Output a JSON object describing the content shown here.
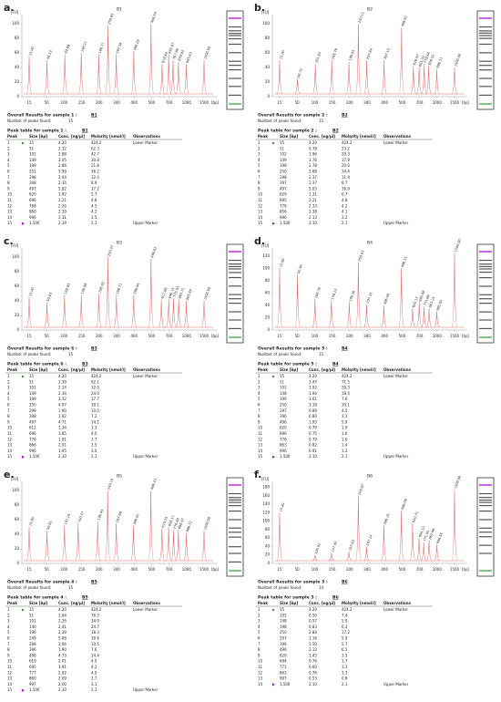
{
  "chart_data": [
    {
      "type": "electropherogram",
      "title": "B1",
      "y_unit": "[FU]",
      "x_unit": "[bp]",
      "color": "#e06a6a",
      "lower_marker_color": "#2ca02c",
      "upper_marker_color": "#b000d0",
      "x": [
        15,
        51,
        102,
        149,
        199,
        251,
        298,
        398,
        497,
        620,
        696,
        768,
        860,
        996,
        1500
      ],
      "values": [
        55,
        50,
        58,
        60,
        58,
        98,
        58,
        62,
        100,
        45,
        58,
        50,
        48,
        45,
        50
      ],
      "peak_labels": [
        "15.00",
        "49.23",
        "99.86",
        "148.21",
        "198.71",
        "250.85",
        "297.58",
        "398.29",
        "496.54",
        "619.84",
        "695.87",
        "767.86",
        "859.82",
        "995.63",
        "1500.00"
      ],
      "xlim": [
        15,
        1500
      ],
      "xticks": [
        15,
        50,
        100,
        150,
        200,
        300,
        400,
        500,
        700,
        1000,
        1500
      ],
      "ylim": [
        0,
        110
      ],
      "yticks": [
        0,
        20,
        40,
        60,
        80,
        100
      ]
    },
    {
      "type": "electropherogram",
      "title": "B2",
      "y_unit": "[FU]",
      "x_unit": "[bp]",
      "color": "#e06a6a",
      "lower_marker_color": "#2ca02c",
      "upper_marker_color": "#b000d0",
      "x": [
        15,
        51,
        102,
        149,
        198,
        250,
        298,
        397,
        497,
        629,
        695,
        779,
        856,
        996,
        1500
      ],
      "values": [
        50,
        25,
        45,
        50,
        48,
        100,
        50,
        50,
        95,
        42,
        40,
        45,
        42,
        38,
        40
      ],
      "peak_labels": [
        "15.00",
        "50.72",
        "101.83",
        "148.76",
        "198.05",
        "250.12",
        "297.84",
        "397.15",
        "496.81",
        "628.97",
        "695.32",
        "778.64",
        "856.02",
        "996.11",
        "1500.00"
      ],
      "xlim": [
        15,
        1500
      ],
      "xticks": [
        15,
        50,
        100,
        150,
        200,
        300,
        400,
        500,
        700,
        1000,
        1500
      ],
      "ylim": [
        0,
        110
      ],
      "yticks": [
        0,
        20,
        40,
        60,
        80,
        100
      ]
    },
    {
      "type": "electropherogram",
      "title": "B3",
      "y_unit": "[FU]",
      "x_unit": "[bp]",
      "color": "#e06a6a",
      "lower_marker_color": "#2ca02c",
      "upper_marker_color": "#b000d0",
      "x": [
        15,
        51,
        101,
        149,
        199,
        250,
        299,
        398,
        497,
        612,
        696,
        776,
        866,
        996,
        1500
      ],
      "values": [
        45,
        38,
        48,
        48,
        50,
        100,
        48,
        48,
        98,
        42,
        42,
        44,
        42,
        40,
        40
      ],
      "peak_labels": [
        "15.00",
        "50.63",
        "100.95",
        "148.88",
        "198.92",
        "250.37",
        "298.71",
        "398.04",
        "496.62",
        "611.88",
        "696.15",
        "775.93",
        "865.71",
        "995.84",
        "1500.00"
      ],
      "xlim": [
        15,
        1500
      ],
      "xticks": [
        15,
        50,
        100,
        150,
        200,
        300,
        400,
        500,
        700,
        1000,
        1500
      ],
      "ylim": [
        0,
        110
      ],
      "yticks": [
        0,
        20,
        40,
        60,
        80,
        100
      ]
    },
    {
      "type": "electropherogram",
      "title": "B4",
      "y_unit": "[FU]",
      "x_unit": "[bp]",
      "color": "#e06a6a",
      "lower_marker_color": "#2ca02c",
      "upper_marker_color": "#b000d0",
      "x": [
        15,
        51,
        101,
        148,
        199,
        250,
        297,
        396,
        496,
        620,
        696,
        776,
        863,
        996,
        1500
      ],
      "values": [
        100,
        90,
        50,
        48,
        45,
        110,
        42,
        40,
        100,
        35,
        45,
        38,
        35,
        30,
        125
      ],
      "peak_labels": [
        "15.00",
        "50.94",
        "100.78",
        "148.12",
        "198.56",
        "250.03",
        "297.35",
        "396.48",
        "496.21",
        "620.17",
        "695.98",
        "775.66",
        "863.24",
        "995.92",
        "1500.00"
      ],
      "xlim": [
        15,
        1500
      ],
      "xticks": [
        15,
        50,
        100,
        150,
        200,
        300,
        400,
        500,
        700,
        1000,
        1500
      ],
      "ylim": [
        0,
        130
      ],
      "yticks": [
        0,
        20,
        40,
        60,
        80,
        100,
        120
      ]
    },
    {
      "type": "electropherogram",
      "title": "B5",
      "y_unit": "[FU]",
      "x_unit": "[bp]",
      "color": "#e06a6a",
      "lower_marker_color": "#2ca02c",
      "upper_marker_color": "#b000d0",
      "x": [
        15,
        51,
        101,
        140,
        196,
        249,
        298,
        396,
        496,
        619,
        695,
        777,
        860,
        997,
        1500
      ],
      "values": [
        50,
        45,
        52,
        55,
        58,
        100,
        55,
        52,
        100,
        48,
        50,
        46,
        46,
        42,
        45
      ],
      "peak_labels": [
        "15.00",
        "50.81",
        "101.24",
        "140.37",
        "196.45",
        "249.18",
        "297.66",
        "396.02",
        "496.33",
        "619.25",
        "695.11",
        "776.89",
        "860.47",
        "996.72",
        "1500.00"
      ],
      "xlim": [
        15,
        1500
      ],
      "xticks": [
        15,
        50,
        100,
        150,
        200,
        300,
        400,
        500,
        700,
        1000,
        1500
      ],
      "ylim": [
        0,
        110
      ],
      "yticks": [
        0,
        20,
        40,
        60,
        80,
        100
      ]
    },
    {
      "type": "electropherogram",
      "title": "B6",
      "y_unit": "[FU]",
      "x_unit": "[bp]",
      "color": "#e06a6a",
      "lower_marker_color": "#2ca02c",
      "upper_marker_color": "#b000d0",
      "x": [
        15,
        101,
        148,
        198,
        250,
        297,
        396,
        496,
        620,
        694,
        771,
        863,
        997,
        1500
      ],
      "values": [
        120,
        20,
        25,
        28,
        160,
        40,
        90,
        125,
        95,
        60,
        50,
        55,
        45,
        175
      ],
      "peak_labels": [
        "15.00",
        "100.91",
        "147.82",
        "197.63",
        "249.87",
        "297.14",
        "396.25",
        "496.08",
        "620.31",
        "694.12",
        "771.45",
        "862.96",
        "996.54",
        "1500.00"
      ],
      "xlim": [
        15,
        1500
      ],
      "xticks": [
        15,
        50,
        100,
        150,
        200,
        300,
        400,
        500,
        700,
        1000,
        1500
      ],
      "ylim": [
        0,
        190
      ],
      "yticks": [
        0,
        20,
        40,
        60,
        80,
        100,
        120,
        140,
        160,
        180
      ]
    }
  ],
  "panels": [
    {
      "label": "a.",
      "results_title": "Overall Results for sample 1 :",
      "sample": "B1",
      "peaks_label": "Number of peaks found:",
      "peaks": "15",
      "table_title": "Peak table for sample 1 :",
      "table_sample": "B1",
      "header": [
        "Peak",
        "Size [bp]",
        "Conc. [ng/µl]",
        "Molarity [nmol/l]",
        "Observations"
      ],
      "rows": [
        [
          "1",
          "15",
          "4.20",
          "424.2",
          "Lower Marker"
        ],
        [
          "2",
          "51",
          "2.12",
          "62.3"
        ],
        [
          "3",
          "102",
          "2.88",
          "42.7"
        ],
        [
          "4",
          "149",
          "3.05",
          "30.8"
        ],
        [
          "5",
          "199",
          "2.86",
          "21.8"
        ],
        [
          "6",
          "251",
          "5.99",
          "36.2"
        ],
        [
          "7",
          "298",
          "2.44",
          "12.4"
        ],
        [
          "8",
          "398",
          "2.34",
          "8.9"
        ],
        [
          "9",
          "497",
          "5.82",
          "17.2"
        ],
        [
          "10",
          "620",
          "1.92",
          "5.7"
        ],
        [
          "11",
          "696",
          "2.21",
          "4.8"
        ],
        [
          "12",
          "768",
          "2.26",
          "4.5"
        ],
        [
          "13",
          "860",
          "2.39",
          "4.2"
        ],
        [
          "14",
          "996",
          "2.31",
          "3.5"
        ],
        [
          "15",
          "1,500",
          "2.19",
          "2.1",
          "Upper Marker"
        ]
      ]
    },
    {
      "label": "b.",
      "results_title": "Overall Results for sample 2 :",
      "sample": "B2",
      "peaks_label": "Number of peaks found:",
      "peaks": "15",
      "table_title": "Peak table for sample 2 :",
      "table_sample": "B2",
      "header": [
        "Peak",
        "Size [bp]",
        "Conc. [ng/µl]",
        "Molarity [nmol/l]",
        "Observations"
      ],
      "rows": [
        [
          "1",
          "15",
          "4.20",
          "424.2",
          "Lower Marker"
        ],
        [
          "2",
          "51",
          "0.78",
          "23.2"
        ],
        [
          "3",
          "102",
          "1.96",
          "29.3"
        ],
        [
          "4",
          "149",
          "1.76",
          "17.9"
        ],
        [
          "5",
          "198",
          "2.78",
          "20.6"
        ],
        [
          "6",
          "250",
          "3.68",
          "34.4"
        ],
        [
          "7",
          "298",
          "2.37",
          "11.9"
        ],
        [
          "8",
          "397",
          "2.37",
          "8.7"
        ],
        [
          "9",
          "497",
          "5.03",
          "16.9"
        ],
        [
          "10",
          "629",
          "1.31",
          "6.7"
        ],
        [
          "11",
          "695",
          "2.21",
          "4.8"
        ],
        [
          "12",
          "779",
          "2.33",
          "4.2"
        ],
        [
          "13",
          "856",
          "2.38",
          "4.1"
        ],
        [
          "14",
          "996",
          "2.13",
          "3.2"
        ],
        [
          "15",
          "1,500",
          "2.10",
          "2.1",
          "Upper Marker"
        ]
      ]
    },
    {
      "label": "c.",
      "results_title": "Overall Results for sample 6 :",
      "sample": "B3",
      "peaks_label": "Number of peaks found:",
      "peaks": "15",
      "table_title": "Peak table for sample 6 :",
      "table_sample": "B3",
      "header": [
        "Peak",
        "Size [bp]",
        "Conc. [ng/µl]",
        "Molarity [nmol/l]",
        "Observations"
      ],
      "rows": [
        [
          "1",
          "15",
          "4.20",
          "424.2",
          "Lower Marker"
        ],
        [
          "2",
          "51",
          "2.39",
          "62.1"
        ],
        [
          "3",
          "101",
          "2.14",
          "32.0"
        ],
        [
          "4",
          "149",
          "2.34",
          "24.0"
        ],
        [
          "5",
          "199",
          "3.32",
          "17.7"
        ],
        [
          "6",
          "250",
          "4.97",
          "30.1"
        ],
        [
          "7",
          "299",
          "1.90",
          "10.0"
        ],
        [
          "8",
          "398",
          "1.92",
          "7.2"
        ],
        [
          "9",
          "497",
          "4.71",
          "14.1"
        ],
        [
          "10",
          "612",
          "1.34",
          "3.3"
        ],
        [
          "11",
          "696",
          "1.85",
          "4.0"
        ],
        [
          "12",
          "776",
          "1.91",
          "3.7"
        ],
        [
          "13",
          "866",
          "2.01",
          "3.5"
        ],
        [
          "14",
          "996",
          "1.95",
          "3.0"
        ],
        [
          "15",
          "1,500",
          "2.10",
          "2.1",
          "Upper Marker"
        ]
      ]
    },
    {
      "label": "d.",
      "results_title": "Overall Results for sample 5 :",
      "sample": "B4",
      "peaks_label": "Number of peaks found:",
      "peaks": "15",
      "table_title": "Peak table for sample 5 :",
      "table_sample": "B4",
      "header": [
        "Peak",
        "Size [bp]",
        "Conc. [ng/µl]",
        "Molarity [nmol/l]",
        "Observations"
      ],
      "rows": [
        [
          "1",
          "15",
          "4.20",
          "424.2",
          "Lower Marker"
        ],
        [
          "2",
          "51",
          "3.47",
          "71.5"
        ],
        [
          "3",
          "101",
          "1.92",
          "29.3"
        ],
        [
          "4",
          "148",
          "1.94",
          "18.4"
        ],
        [
          "5",
          "199",
          "1.61",
          "7.6"
        ],
        [
          "6",
          "250",
          "3.18",
          "30.1"
        ],
        [
          "7",
          "297",
          "0.89",
          "4.5"
        ],
        [
          "8",
          "396",
          "0.80",
          "3.1"
        ],
        [
          "9",
          "496",
          "1.93",
          "5.9"
        ],
        [
          "10",
          "620",
          "0.79",
          "1.9"
        ],
        [
          "11",
          "696",
          "0.75",
          "1.6"
        ],
        [
          "12",
          "776",
          "0.79",
          "1.6"
        ],
        [
          "13",
          "863",
          "0.82",
          "1.4"
        ],
        [
          "14",
          "996",
          "0.91",
          "1.2"
        ],
        [
          "15",
          "1,500",
          "2.10",
          "2.1",
          "Upper Marker"
        ]
      ]
    },
    {
      "label": "e.",
      "results_title": "Overall Results for sample 4 :",
      "sample": "B5",
      "peaks_label": "Number of peaks found:",
      "peaks": "15",
      "table_title": "Peak table for sample 4 :",
      "table_sample": "B5",
      "header": [
        "Peak",
        "Size [bp]",
        "Conc. [ng/µl]",
        "Molarity [nmol/l]",
        "Observations"
      ],
      "rows": [
        [
          "1",
          "15",
          "4.20",
          "424.2",
          "Lower Marker"
        ],
        [
          "2",
          "51",
          "2.64",
          "76.3"
        ],
        [
          "3",
          "101",
          "2.26",
          "34.0"
        ],
        [
          "4",
          "140",
          "2.41",
          "24.7"
        ],
        [
          "5",
          "196",
          "2.39",
          "18.3"
        ],
        [
          "6",
          "249",
          "5.08",
          "30.6"
        ],
        [
          "7",
          "298",
          "2.06",
          "10.5"
        ],
        [
          "8",
          "396",
          "1.90",
          "7.6"
        ],
        [
          "9",
          "496",
          "4.73",
          "14.4"
        ],
        [
          "10",
          "619",
          "2.01",
          "4.9"
        ],
        [
          "11",
          "695",
          "1.91",
          "4.2"
        ],
        [
          "12",
          "777",
          "2.02",
          "4.0"
        ],
        [
          "13",
          "860",
          "2.09",
          "3.7"
        ],
        [
          "14",
          "997",
          "2.00",
          "3.1"
        ],
        [
          "15",
          "1,500",
          "2.10",
          "2.1",
          "Upper Marker"
        ]
      ]
    },
    {
      "label": "f.",
      "results_title": "Overall Results for sample 3 :",
      "sample": "B6",
      "peaks_label": "Number of peaks found:",
      "peaks": "14",
      "table_title": "Peak table for sample 3 :",
      "table_sample": "B6",
      "header": [
        "Peak",
        "Size [bp]",
        "Conc. [ng/µl]",
        "Molarity [nmol/l]",
        "Observations"
      ],
      "rows": [
        [
          "1",
          "15",
          "4.20",
          "424.2",
          "Lower Marker"
        ],
        [
          "2",
          "101",
          "0.50",
          "7.4"
        ],
        [
          "3",
          "148",
          "0.57",
          "5.9"
        ],
        [
          "4",
          "198",
          "0.83",
          "6.3"
        ],
        [
          "5",
          "250",
          "2.84",
          "17.2"
        ],
        [
          "6",
          "297",
          "1.16",
          "5.9"
        ],
        [
          "7",
          "396",
          "1.50",
          "5.7"
        ],
        [
          "8",
          "496",
          "2.13",
          "6.5"
        ],
        [
          "9",
          "620",
          "1.43",
          "3.5"
        ],
        [
          "10",
          "694",
          "0.76",
          "1.7"
        ],
        [
          "11",
          "771",
          "0.60",
          "1.2"
        ],
        [
          "12",
          "863",
          "0.76",
          "1.3"
        ],
        [
          "13",
          "997",
          "0.53",
          "0.8"
        ],
        [
          "14",
          "1,500",
          "2.10",
          "2.1",
          "Upper Marker"
        ]
      ]
    }
  ]
}
